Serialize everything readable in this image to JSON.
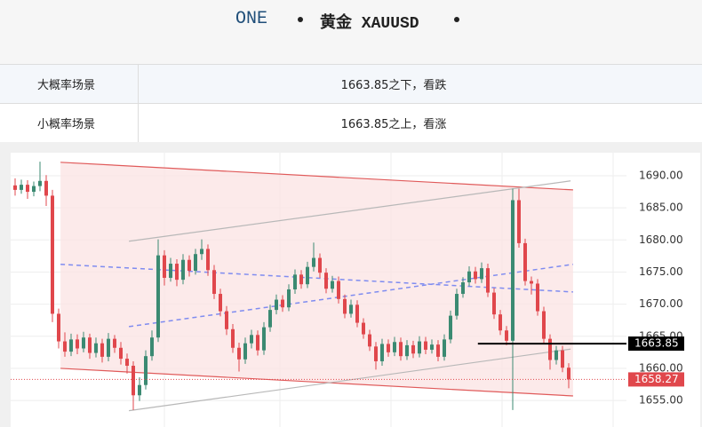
{
  "header": {
    "name": "ONE",
    "symbol": "黄金 XAUUSD"
  },
  "table": {
    "rows": [
      [
        "大概率场景",
        "1663.85之下，看跌"
      ],
      [
        "小概率场景",
        "1663.85之上，看涨"
      ]
    ]
  },
  "chart_data": {
    "type": "candlestick",
    "up_color": "#3b8a72",
    "down_color": "#e0474c",
    "ylim": [
      1650.86,
      1693.18
    ],
    "yticks": [
      {
        "value": 1655,
        "label": "1655.00"
      },
      {
        "value": 1660,
        "label": "1660.00"
      },
      {
        "value": 1665,
        "label": "1665.00"
      },
      {
        "value": 1670,
        "label": "1670.00"
      },
      {
        "value": 1675,
        "label": "1675.00"
      },
      {
        "value": 1680,
        "label": "1680.00"
      },
      {
        "value": 1685,
        "label": "1685.00"
      },
      {
        "value": 1690,
        "label": "1690.00"
      }
    ],
    "grid": true,
    "ohlc": [
      [
        1688.5,
        1689.6,
        1686.9,
        1687.8
      ],
      [
        1687.8,
        1689.4,
        1687.2,
        1688.6
      ],
      [
        1688.6,
        1689.3,
        1686.4,
        1687.5
      ],
      [
        1687.5,
        1689.1,
        1686.8,
        1688.4
      ],
      [
        1688.4,
        1692.2,
        1687.6,
        1689.2
      ],
      [
        1689.2,
        1690.1,
        1685.3,
        1686.9
      ],
      [
        1686.9,
        1687.8,
        1667.2,
        1668.5
      ],
      [
        1668.5,
        1669.3,
        1663.1,
        1664.2
      ],
      [
        1664.2,
        1665.6,
        1661.8,
        1662.6
      ],
      [
        1662.6,
        1665.4,
        1661.9,
        1664.5
      ],
      [
        1664.5,
        1665.3,
        1662.2,
        1663.1
      ],
      [
        1663.1,
        1665.7,
        1662.5,
        1664.8
      ],
      [
        1664.8,
        1665.4,
        1661.5,
        1662.4
      ],
      [
        1662.4,
        1664.8,
        1661.7,
        1663.9
      ],
      [
        1663.9,
        1664.6,
        1660.9,
        1661.8
      ],
      [
        1661.8,
        1665.5,
        1661.1,
        1664.6
      ],
      [
        1664.6,
        1665.2,
        1662.4,
        1663.2
      ],
      [
        1663.2,
        1664.1,
        1660.6,
        1661.5
      ],
      [
        1661.5,
        1662.3,
        1659.2,
        1660.4
      ],
      [
        1660.4,
        1661.1,
        1653.5,
        1655.8
      ],
      [
        1655.8,
        1658.6,
        1654.9,
        1657.4
      ],
      [
        1657.4,
        1662.8,
        1656.7,
        1661.9
      ],
      [
        1661.9,
        1665.9,
        1661.2,
        1664.8
      ],
      [
        1664.8,
        1680.1,
        1664.1,
        1677.6
      ],
      [
        1677.6,
        1678.4,
        1672.9,
        1674.1
      ],
      [
        1674.1,
        1677.2,
        1673.5,
        1676.3
      ],
      [
        1676.3,
        1677.0,
        1672.8,
        1673.8
      ],
      [
        1673.8,
        1677.8,
        1673.1,
        1676.9
      ],
      [
        1676.9,
        1677.6,
        1674.3,
        1675.2
      ],
      [
        1675.2,
        1678.6,
        1674.6,
        1677.8
      ],
      [
        1677.8,
        1680.1,
        1676.9,
        1678.6
      ],
      [
        1678.6,
        1679.3,
        1674.4,
        1675.3
      ],
      [
        1675.3,
        1676.1,
        1670.8,
        1671.6
      ],
      [
        1671.6,
        1672.4,
        1668.1,
        1668.9
      ],
      [
        1668.9,
        1669.7,
        1665.2,
        1666.1
      ],
      [
        1666.1,
        1666.9,
        1662.4,
        1663.2
      ],
      [
        1663.2,
        1664.0,
        1659.5,
        1661.4
      ],
      [
        1661.4,
        1664.8,
        1660.7,
        1663.9
      ],
      [
        1663.9,
        1666.0,
        1663.1,
        1665.2
      ],
      [
        1665.2,
        1665.9,
        1662.0,
        1662.8
      ],
      [
        1662.8,
        1667.2,
        1662.1,
        1666.4
      ],
      [
        1666.4,
        1669.9,
        1665.7,
        1669.1
      ],
      [
        1669.1,
        1671.5,
        1668.4,
        1670.7
      ],
      [
        1670.7,
        1671.4,
        1668.8,
        1669.5
      ],
      [
        1669.5,
        1673.1,
        1668.9,
        1672.3
      ],
      [
        1672.3,
        1675.4,
        1671.6,
        1674.6
      ],
      [
        1674.6,
        1675.3,
        1672.4,
        1673.1
      ],
      [
        1673.1,
        1676.6,
        1672.5,
        1675.8
      ],
      [
        1675.8,
        1679.6,
        1675.1,
        1677.2
      ],
      [
        1677.2,
        1677.9,
        1674.1,
        1674.9
      ],
      [
        1674.9,
        1675.6,
        1671.7,
        1672.4
      ],
      [
        1672.4,
        1674.4,
        1671.8,
        1673.6
      ],
      [
        1673.6,
        1674.3,
        1670.1,
        1670.8
      ],
      [
        1670.8,
        1671.5,
        1667.8,
        1668.5
      ],
      [
        1668.5,
        1670.7,
        1667.9,
        1669.9
      ],
      [
        1669.9,
        1670.6,
        1666.4,
        1667.1
      ],
      [
        1667.1,
        1667.8,
        1664.6,
        1665.3
      ],
      [
        1665.3,
        1666.0,
        1662.7,
        1663.4
      ],
      [
        1663.4,
        1664.1,
        1659.8,
        1661.1
      ],
      [
        1661.1,
        1664.6,
        1660.4,
        1663.8
      ],
      [
        1663.8,
        1664.5,
        1661.8,
        1662.5
      ],
      [
        1662.5,
        1664.9,
        1661.9,
        1664.1
      ],
      [
        1664.1,
        1664.8,
        1661.2,
        1661.9
      ],
      [
        1661.9,
        1664.4,
        1661.3,
        1663.6
      ],
      [
        1663.6,
        1664.3,
        1661.6,
        1662.3
      ],
      [
        1662.3,
        1665.0,
        1661.7,
        1664.2
      ],
      [
        1664.2,
        1664.9,
        1662.2,
        1662.9
      ],
      [
        1662.9,
        1664.5,
        1662.3,
        1663.7
      ],
      [
        1663.7,
        1664.4,
        1661.1,
        1661.8
      ],
      [
        1661.8,
        1665.3,
        1661.2,
        1664.5
      ],
      [
        1664.5,
        1669.0,
        1663.9,
        1668.2
      ],
      [
        1668.2,
        1672.4,
        1667.6,
        1671.6
      ],
      [
        1671.6,
        1674.2,
        1671.0,
        1673.4
      ],
      [
        1673.4,
        1675.9,
        1672.8,
        1675.1
      ],
      [
        1675.1,
        1675.8,
        1673.2,
        1673.9
      ],
      [
        1673.9,
        1676.5,
        1673.3,
        1675.6
      ],
      [
        1675.6,
        1676.3,
        1671.1,
        1671.8
      ],
      [
        1671.8,
        1672.5,
        1667.7,
        1668.4
      ],
      [
        1668.4,
        1669.1,
        1665.2,
        1665.9
      ],
      [
        1665.9,
        1666.6,
        1663.6,
        1664.3
      ],
      [
        1664.3,
        1688.0,
        1653.5,
        1686.2
      ],
      [
        1686.2,
        1688.0,
        1678.8,
        1679.5
      ],
      [
        1679.5,
        1680.2,
        1672.9,
        1673.6
      ],
      [
        1673.6,
        1674.3,
        1671.5,
        1673.2
      ],
      [
        1673.2,
        1673.9,
        1668.2,
        1668.9
      ],
      [
        1668.9,
        1669.6,
        1663.9,
        1664.6
      ],
      [
        1664.6,
        1665.3,
        1659.8,
        1661.3
      ],
      [
        1661.3,
        1663.5,
        1660.6,
        1662.8
      ],
      [
        1662.8,
        1663.5,
        1659.4,
        1660.1
      ],
      [
        1660.1,
        1660.8,
        1656.9,
        1658.27
      ]
    ],
    "lines": [
      {
        "color": "#e05a5a",
        "dash": false,
        "x": [
          7.3,
          89.7
        ],
        "y": [
          1692.1,
          1687.8
        ]
      },
      {
        "color": "#e05a5a",
        "dash": false,
        "x": [
          7.3,
          89.7
        ],
        "y": [
          1660.0,
          1655.7
        ]
      },
      {
        "color": "#b8b8b8",
        "dash": false,
        "x": [
          18.3,
          89.3
        ],
        "y": [
          1679.8,
          1689.2
        ]
      },
      {
        "color": "#b8b8b8",
        "dash": false,
        "x": [
          18.3,
          89.3
        ],
        "y": [
          1653.4,
          1663.0
        ]
      },
      {
        "color": "#7f8cf0",
        "dash": true,
        "x": [
          7.3,
          89.7
        ],
        "y": [
          1676.2,
          1671.9
        ]
      },
      {
        "color": "#7f8cf0",
        "dash": true,
        "x": [
          18.3,
          89.7
        ],
        "y": [
          1666.5,
          1676.2
        ]
      }
    ],
    "levels": [
      {
        "value": 1663.85,
        "color": "#000000",
        "from": 74.4,
        "dotted": false
      },
      {
        "value": 1658.27,
        "color": "#e0474c",
        "from": 0,
        "dotted": true
      }
    ]
  }
}
